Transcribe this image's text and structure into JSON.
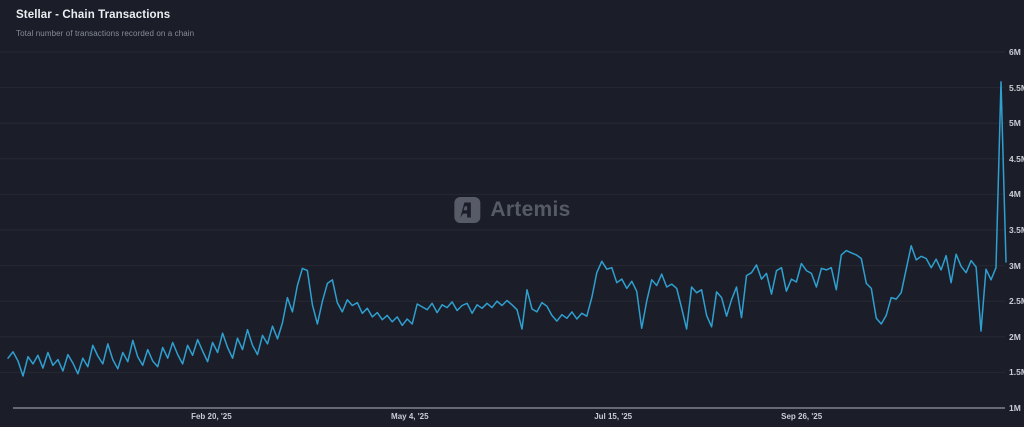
{
  "header": {
    "title": "Stellar - Chain Transactions",
    "subtitle": "Total number of transactions recorded on a chain"
  },
  "watermark": {
    "label": "Artemis"
  },
  "colors": {
    "background": "#1b1e28",
    "series_line": "#2f9fd0",
    "gridline": "rgba(255,255,255,0.05)",
    "axis_line": "#7e838d",
    "tick_label": "#c9ccd4",
    "title": "#eceef2",
    "subtitle": "#878c99",
    "watermark": "#545a66"
  },
  "chart_data": {
    "type": "line",
    "title": "Stellar - Chain Transactions",
    "subtitle": "Total number of transactions recorded on a chain",
    "unit": "transactions (millions)",
    "legend_position": "none",
    "grid": "horizontal",
    "y_axis": {
      "side": "right",
      "range": [
        1,
        6
      ],
      "ticks": [
        {
          "label": "1M",
          "value": 1
        },
        {
          "label": "1.5M",
          "value": 1.5
        },
        {
          "label": "2M",
          "value": 2
        },
        {
          "label": "2.5M",
          "value": 2.5
        },
        {
          "label": "3M",
          "value": 3
        },
        {
          "label": "3.5M",
          "value": 3.5
        },
        {
          "label": "4M",
          "value": 4
        },
        {
          "label": "4.5M",
          "value": 4.5
        },
        {
          "label": "5M",
          "value": 5
        },
        {
          "label": "5.5M",
          "value": 5.5
        },
        {
          "label": "6M",
          "value": 6
        }
      ]
    },
    "x_axis": {
      "ticks": [
        {
          "label": "Feb 20, '25",
          "position": 0.2
        },
        {
          "label": "May 4, '25",
          "position": 0.4
        },
        {
          "label": "Jul 15, '25",
          "position": 0.605
        },
        {
          "label": "Sep 26, '25",
          "position": 0.795
        }
      ]
    },
    "series": [
      {
        "name": "Stellar daily chain transactions (millions)",
        "color": "#2f9fd0",
        "values": [
          1.7,
          1.79,
          1.66,
          1.45,
          1.72,
          1.62,
          1.74,
          1.56,
          1.78,
          1.6,
          1.68,
          1.52,
          1.75,
          1.63,
          1.48,
          1.7,
          1.58,
          1.88,
          1.73,
          1.62,
          1.9,
          1.68,
          1.55,
          1.78,
          1.65,
          1.95,
          1.72,
          1.6,
          1.82,
          1.66,
          1.58,
          1.85,
          1.7,
          1.92,
          1.75,
          1.62,
          1.88,
          1.74,
          1.96,
          1.8,
          1.65,
          1.92,
          1.78,
          2.05,
          1.85,
          1.7,
          1.98,
          1.82,
          2.1,
          1.88,
          1.75,
          2.02,
          1.9,
          2.15,
          1.97,
          2.2,
          2.55,
          2.35,
          2.72,
          2.96,
          2.93,
          2.45,
          2.18,
          2.5,
          2.75,
          2.8,
          2.48,
          2.35,
          2.52,
          2.44,
          2.48,
          2.33,
          2.4,
          2.28,
          2.34,
          2.24,
          2.3,
          2.21,
          2.28,
          2.16,
          2.25,
          2.18,
          2.46,
          2.42,
          2.38,
          2.47,
          2.34,
          2.45,
          2.41,
          2.49,
          2.37,
          2.44,
          2.47,
          2.33,
          2.45,
          2.4,
          2.47,
          2.41,
          2.5,
          2.44,
          2.51,
          2.45,
          2.38,
          2.11,
          2.66,
          2.39,
          2.35,
          2.48,
          2.43,
          2.3,
          2.22,
          2.31,
          2.26,
          2.35,
          2.25,
          2.33,
          2.29,
          2.55,
          2.9,
          3.06,
          2.95,
          2.97,
          2.76,
          2.81,
          2.68,
          2.78,
          2.64,
          2.12,
          2.5,
          2.8,
          2.72,
          2.88,
          2.7,
          2.74,
          2.68,
          2.4,
          2.11,
          2.7,
          2.62,
          2.66,
          2.3,
          2.14,
          2.63,
          2.55,
          2.29,
          2.52,
          2.7,
          2.27,
          2.86,
          2.9,
          3.01,
          2.81,
          2.89,
          2.6,
          2.93,
          2.97,
          2.64,
          2.81,
          2.77,
          3.03,
          2.93,
          2.89,
          2.7,
          2.96,
          2.94,
          2.97,
          2.66,
          3.15,
          3.21,
          3.18,
          3.15,
          3.1,
          2.75,
          2.68,
          2.26,
          2.18,
          2.3,
          2.55,
          2.53,
          2.62,
          2.95,
          3.28,
          3.08,
          3.13,
          3.1,
          2.97,
          3.09,
          2.94,
          3.14,
          2.76,
          3.16,
          2.99,
          2.9,
          3.07,
          2.98,
          2.08,
          2.95,
          2.8,
          2.97,
          5.58,
          3.05
        ]
      }
    ]
  }
}
